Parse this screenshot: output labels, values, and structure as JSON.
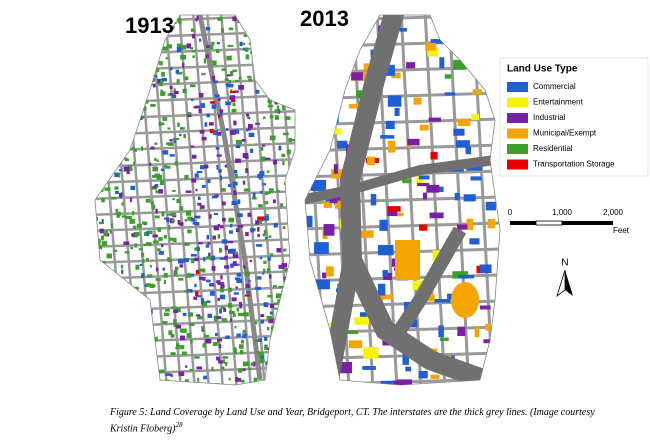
{
  "maps": [
    {
      "year": "1913"
    },
    {
      "year": "2013"
    }
  ],
  "legend": {
    "title": "Land Use Type",
    "items": [
      {
        "label": "Commercial",
        "color": "#1f5fd6"
      },
      {
        "label": "Entertainment",
        "color": "#f5f500"
      },
      {
        "label": "Industrial",
        "color": "#7a1fa8"
      },
      {
        "label": "Municipal/Exempt",
        "color": "#f5a500"
      },
      {
        "label": "Residential",
        "color": "#3aa02a"
      },
      {
        "label": "Transportation Storage",
        "color": "#e80000"
      }
    ]
  },
  "scale": {
    "labels": [
      "0",
      "1,000",
      "2,000"
    ],
    "unit": "Feet"
  },
  "north": "N",
  "caption": {
    "text": "Figure 5: Land Coverage by Land Use and Year, Bridgeport, CT. The interstates are the thick grey lines.  (Image courtesy Kristin Floberg)",
    "note": "28"
  }
}
